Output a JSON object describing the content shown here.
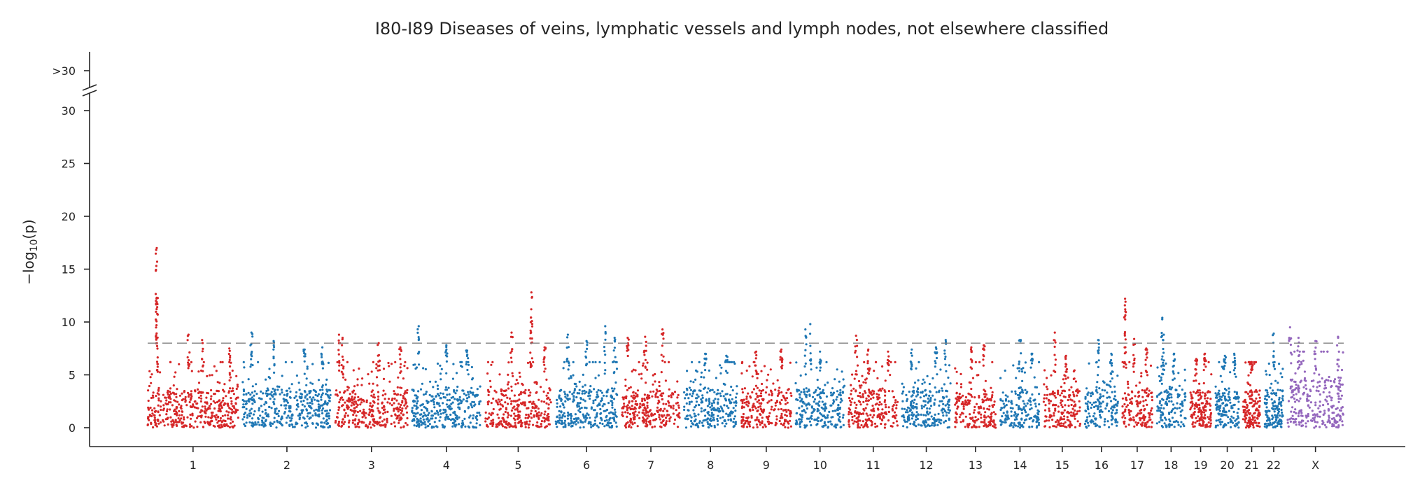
{
  "chart_data": {
    "type": "scatter",
    "title": "I80-I89 Diseases of veins, lymphatic vessels and lymph nodes, not elsewhere classified",
    "xlabel": "",
    "ylabel": "−log",
    "ylabel_subscript": "10",
    "ylabel_suffix": "(p)",
    "ylim": [
      -1.5,
      31
    ],
    "yticks": [
      0,
      5,
      10,
      15,
      20,
      25,
      30
    ],
    "ytick_labels": [
      "0",
      "5",
      "10",
      "15",
      "20",
      "25",
      "30"
    ],
    "overflow_tick_label": ">30",
    "threshold": 8,
    "threshold_style": "dashed",
    "colors": {
      "odd": "#d62728",
      "even": "#1f77b4",
      "X": "#9467bd",
      "threshold": "#808080",
      "axis": "#262626"
    },
    "chromosomes": [
      {
        "label": "1",
        "size": 249,
        "peaks": [
          [
            0.1,
            17.0
          ],
          [
            0.1,
            12.3
          ],
          [
            0.45,
            8.8
          ],
          [
            0.6,
            8.3
          ],
          [
            0.9,
            7.5
          ]
        ]
      },
      {
        "label": "2",
        "size": 243,
        "peaks": [
          [
            0.1,
            9.0
          ],
          [
            0.35,
            8.2
          ],
          [
            0.7,
            7.4
          ],
          [
            0.9,
            7.6
          ]
        ]
      },
      {
        "label": "3",
        "size": 198,
        "peaks": [
          [
            0.05,
            8.8
          ],
          [
            0.1,
            8.5
          ],
          [
            0.6,
            8.0
          ],
          [
            0.9,
            7.6
          ]
        ]
      },
      {
        "label": "4",
        "size": 190,
        "peaks": [
          [
            0.1,
            9.6
          ],
          [
            0.5,
            7.8
          ],
          [
            0.8,
            7.3
          ]
        ]
      },
      {
        "label": "5",
        "size": 181,
        "peaks": [
          [
            0.4,
            9.0
          ],
          [
            0.7,
            12.8
          ],
          [
            0.9,
            7.6
          ]
        ]
      },
      {
        "label": "6",
        "size": 171,
        "peaks": [
          [
            0.2,
            8.8
          ],
          [
            0.5,
            8.2
          ],
          [
            0.8,
            9.6
          ],
          [
            0.95,
            8.5
          ]
        ]
      },
      {
        "label": "7",
        "size": 159,
        "peaks": [
          [
            0.1,
            8.5
          ],
          [
            0.4,
            8.6
          ],
          [
            0.7,
            9.3
          ]
        ]
      },
      {
        "label": "8",
        "size": 145,
        "peaks": [
          [
            0.4,
            7.0
          ],
          [
            0.8,
            6.8
          ]
        ]
      },
      {
        "label": "9",
        "size": 138,
        "peaks": [
          [
            0.3,
            7.2
          ],
          [
            0.8,
            7.4
          ]
        ]
      },
      {
        "label": "10",
        "size": 134,
        "peaks": [
          [
            0.2,
            9.3
          ],
          [
            0.3,
            9.8
          ],
          [
            0.5,
            7.2
          ]
        ]
      },
      {
        "label": "11",
        "size": 135,
        "peaks": [
          [
            0.15,
            8.7
          ],
          [
            0.4,
            7.4
          ],
          [
            0.8,
            7.2
          ]
        ]
      },
      {
        "label": "12",
        "size": 133,
        "peaks": [
          [
            0.2,
            7.4
          ],
          [
            0.7,
            7.6
          ],
          [
            0.9,
            8.3
          ]
        ]
      },
      {
        "label": "13",
        "size": 114,
        "peaks": [
          [
            0.4,
            7.6
          ],
          [
            0.7,
            7.8
          ]
        ]
      },
      {
        "label": "14",
        "size": 107,
        "peaks": [
          [
            0.5,
            8.3
          ],
          [
            0.8,
            7.0
          ]
        ]
      },
      {
        "label": "15",
        "size": 102,
        "peaks": [
          [
            0.3,
            9.0
          ],
          [
            0.6,
            6.8
          ]
        ]
      },
      {
        "label": "16",
        "size": 90,
        "peaks": [
          [
            0.4,
            8.3
          ],
          [
            0.8,
            7.0
          ]
        ]
      },
      {
        "label": "17",
        "size": 83,
        "peaks": [
          [
            0.1,
            12.2
          ],
          [
            0.4,
            8.4
          ],
          [
            0.8,
            7.5
          ]
        ]
      },
      {
        "label": "18",
        "size": 80,
        "peaks": [
          [
            0.2,
            10.4
          ],
          [
            0.25,
            8.8
          ],
          [
            0.6,
            7.0
          ]
        ]
      },
      {
        "label": "19",
        "size": 59,
        "peaks": [
          [
            0.3,
            6.5
          ],
          [
            0.7,
            7.0
          ]
        ]
      },
      {
        "label": "20",
        "size": 64,
        "peaks": [
          [
            0.4,
            6.8
          ],
          [
            0.8,
            7.0
          ]
        ]
      },
      {
        "label": "21",
        "size": 47,
        "peaks": [
          [
            0.5,
            6.2
          ]
        ]
      },
      {
        "label": "22",
        "size": 51,
        "peaks": [
          [
            0.5,
            8.9
          ]
        ]
      },
      {
        "label": "X",
        "size": 155,
        "peaks": [
          [
            0.05,
            9.5
          ],
          [
            0.2,
            8.5
          ],
          [
            0.5,
            8.2
          ],
          [
            0.9,
            8.6
          ]
        ]
      }
    ]
  }
}
